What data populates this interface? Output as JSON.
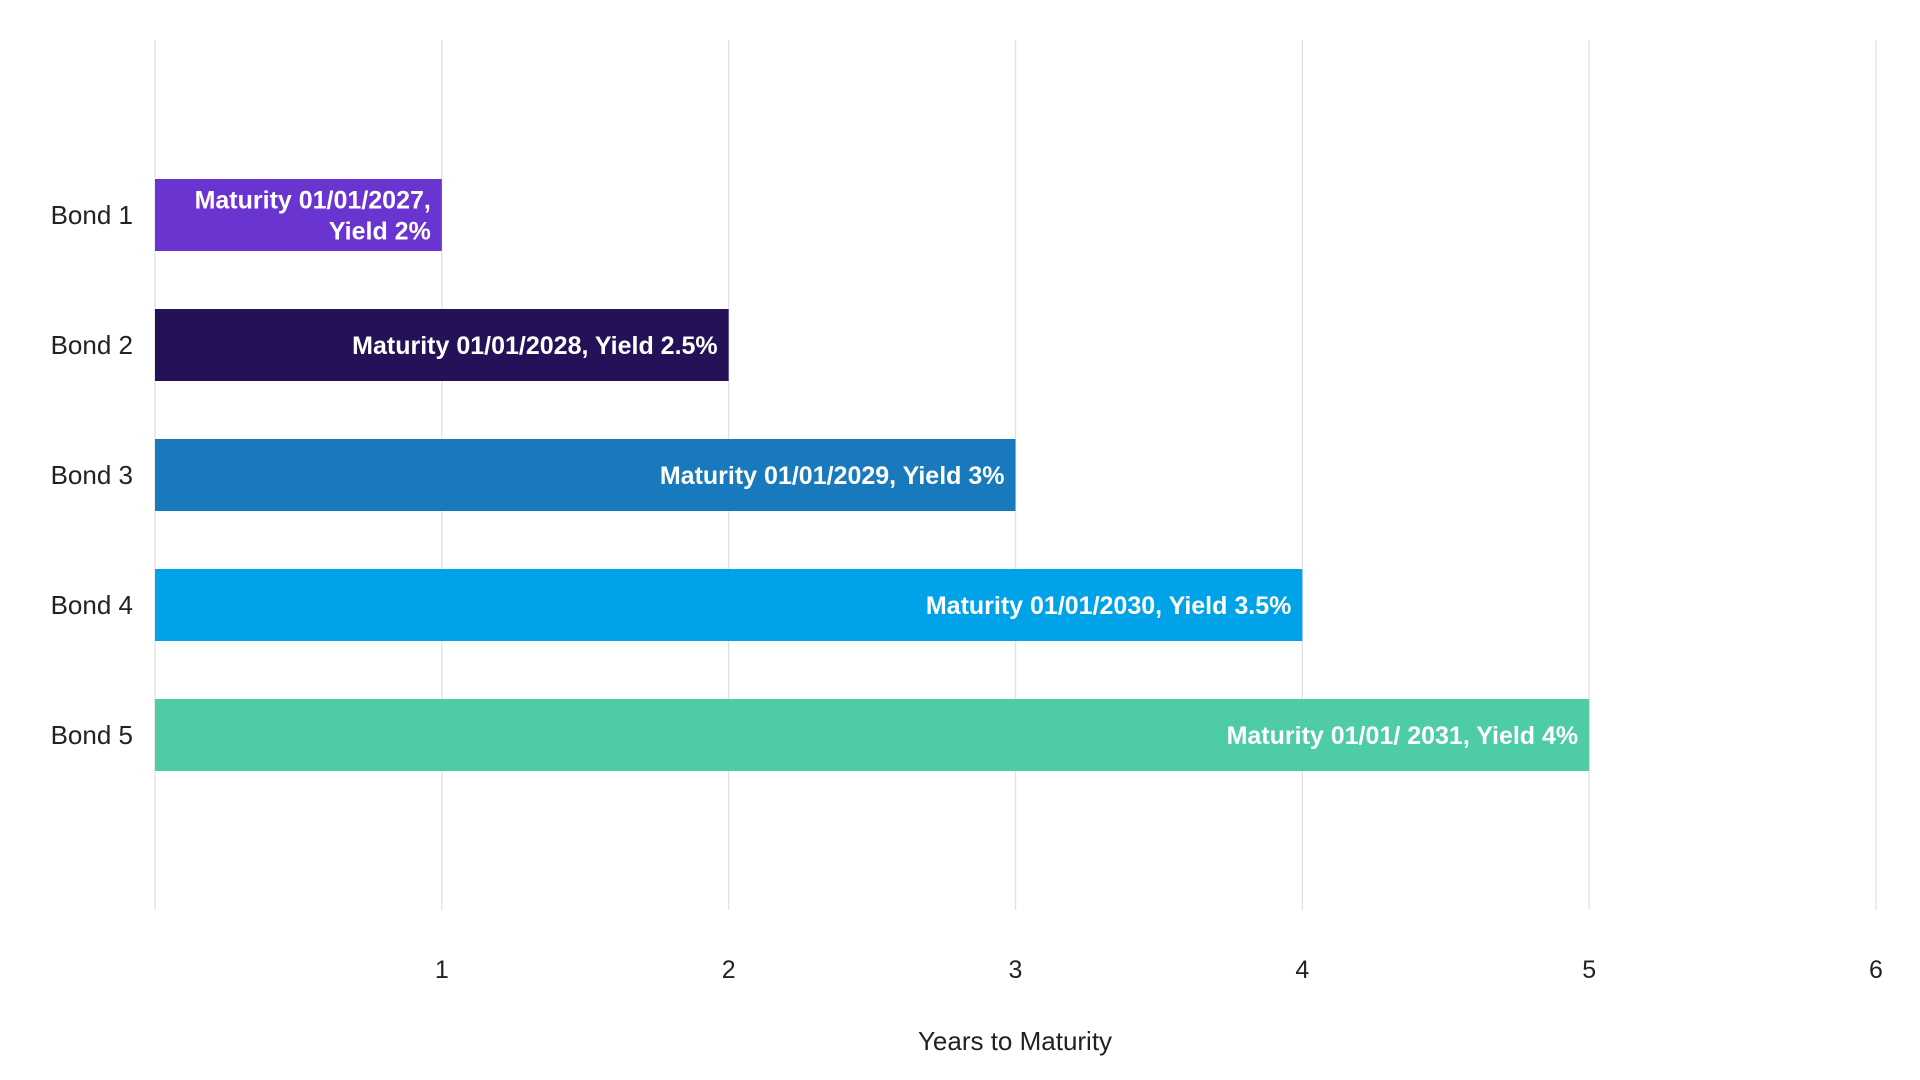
{
  "chart_data": {
    "type": "bar",
    "orientation": "horizontal",
    "title": "",
    "xlabel": "Years to Maturity",
    "ylabel": "",
    "xlim": [
      0,
      6
    ],
    "xticks": [
      1,
      2,
      3,
      4,
      5,
      6
    ],
    "grid": "vertical",
    "legend": "none",
    "categories": [
      "Bond 1",
      "Bond 2",
      "Bond 3",
      "Bond 4",
      "Bond 5"
    ],
    "values": [
      1,
      2,
      3,
      4,
      5
    ],
    "colors": [
      "#6a34d1",
      "#241157",
      "#1979bd",
      "#00a3e7",
      "#4dcca6"
    ],
    "bar_labels": [
      [
        "Maturity 01/01/2027,",
        "Yield 2%"
      ],
      [
        "Maturity 01/01/2028, Yield 2.5%"
      ],
      [
        "Maturity 01/01/2029, Yield 3%"
      ],
      [
        "Maturity 01/01/2030, Yield 3.5%"
      ],
      [
        "Maturity 01/01/ 2031, Yield 4%"
      ]
    ]
  }
}
